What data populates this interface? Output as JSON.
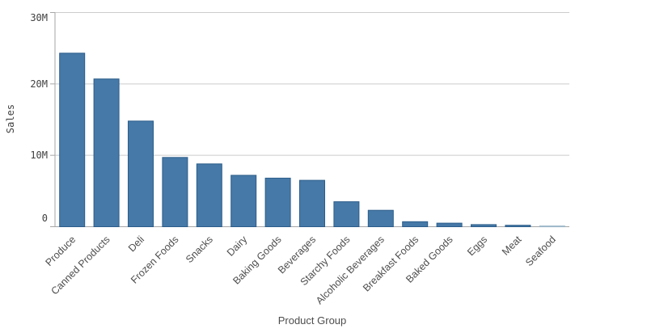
{
  "chart_data": {
    "type": "bar",
    "title": "",
    "xlabel": "Product Group",
    "ylabel": "Sales",
    "categories": [
      "Produce",
      "Canned Products",
      "Deli",
      "Frozen Foods",
      "Snacks",
      "Dairy",
      "Baking Goods",
      "Beverages",
      "Starchy Foods",
      "Alcoholic Beverages",
      "Breakfast Foods",
      "Baked Goods",
      "Eggs",
      "Meat",
      "Seafood"
    ],
    "values": [
      24300000,
      20700000,
      14800000,
      9700000,
      8800000,
      7200000,
      6800000,
      6500000,
      3500000,
      2300000,
      700000,
      500000,
      300000,
      200000,
      100000
    ],
    "ylim": [
      0,
      30000000
    ],
    "yticks": [
      {
        "value": 0,
        "label": "0"
      },
      {
        "value": 10000000,
        "label": "10M"
      },
      {
        "value": 20000000,
        "label": "20M"
      },
      {
        "value": 30000000,
        "label": "30M"
      }
    ],
    "grid": true,
    "legend": "none",
    "x_label_rotation_deg": -45,
    "colors": {
      "bar_fill": "#4679a7",
      "bar_border": "#2b5d8a",
      "last_bar_fill": "#c3d3df",
      "last_bar_border": "#9db7c8",
      "gridline": "#cccccc",
      "axis_line": "#a6a6a6",
      "tick_text": "#404040",
      "category_text": "#4d4d4d"
    }
  }
}
